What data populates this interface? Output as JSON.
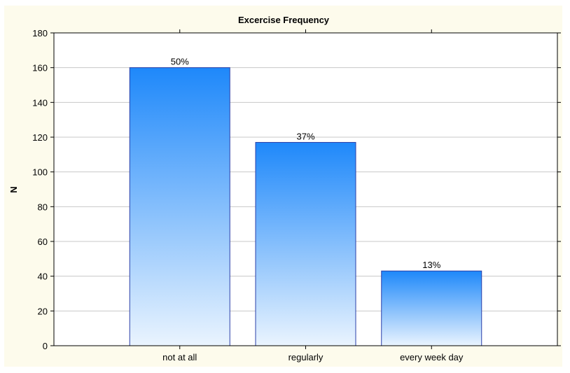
{
  "chart_data": {
    "type": "bar",
    "title": "Excercise Frequency",
    "ylabel": "N",
    "xlabel": "",
    "categories": [
      "not at all",
      "regularly",
      "every week day"
    ],
    "values": [
      160,
      117,
      43
    ],
    "data_labels": [
      "50%",
      "37%",
      "13%"
    ],
    "ylim": [
      0,
      180
    ],
    "yticks": [
      0,
      20,
      40,
      60,
      80,
      100,
      120,
      140,
      160,
      180
    ],
    "ytick_labels": [
      "0",
      "20",
      "40",
      "60",
      "80",
      "100",
      "120",
      "140",
      "160",
      "180"
    ],
    "grid": true,
    "legend": "none"
  },
  "colors": {
    "bar_top": "#1e88fa",
    "bar_bottom": "#eaf4fe",
    "bar_stroke": "#2a3fa8",
    "panel_background": "#fdfbec"
  }
}
